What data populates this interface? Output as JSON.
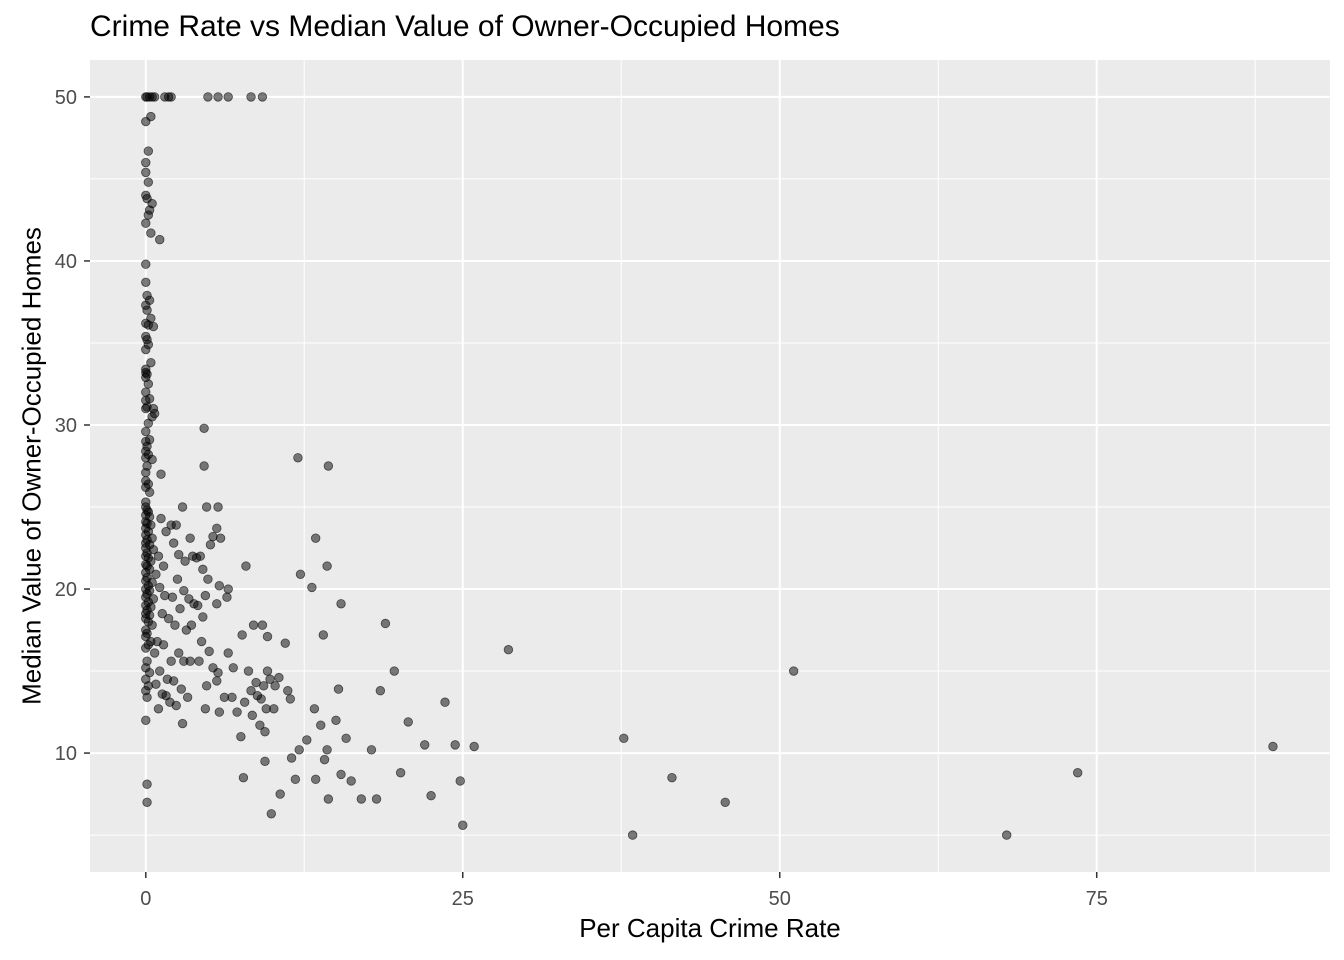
{
  "chart_data": {
    "type": "scatter",
    "title": "Crime Rate vs Median Value of Owner-Occupied Homes",
    "xlabel": "Per Capita Crime Rate",
    "ylabel": "Median Value of Owner-Occupied Homes",
    "xlim": [
      -4.4,
      93.4
    ],
    "ylim": [
      2.75,
      52.25
    ],
    "x_ticks": [
      0,
      25,
      50,
      75
    ],
    "y_ticks": [
      10,
      20,
      30,
      40,
      50
    ],
    "x_tick_labels": [
      "0",
      "25",
      "50",
      "75"
    ],
    "y_tick_labels": [
      "10",
      "20",
      "30",
      "40",
      "50"
    ],
    "grid": true,
    "panel_background": "#ebebeb",
    "grid_color": "#ffffff",
    "point_color": "#000000",
    "point_opacity": 0.5,
    "points": [
      [
        0.0,
        50.0
      ],
      [
        0.1,
        50.0
      ],
      [
        0.3,
        50.0
      ],
      [
        0.5,
        50.0
      ],
      [
        0.7,
        50.0
      ],
      [
        1.5,
        50.0
      ],
      [
        1.8,
        50.0
      ],
      [
        2.0,
        50.0
      ],
      [
        4.9,
        50.0
      ],
      [
        5.7,
        50.0
      ],
      [
        6.5,
        50.0
      ],
      [
        8.3,
        50.0
      ],
      [
        9.2,
        50.0
      ],
      [
        0.0,
        48.5
      ],
      [
        0.4,
        48.8
      ],
      [
        0.2,
        46.7
      ],
      [
        0.0,
        46.0
      ],
      [
        0.0,
        45.4
      ],
      [
        0.2,
        44.8
      ],
      [
        0.0,
        44.0
      ],
      [
        0.1,
        43.8
      ],
      [
        0.5,
        43.5
      ],
      [
        0.3,
        43.1
      ],
      [
        0.2,
        42.8
      ],
      [
        0.0,
        42.3
      ],
      [
        0.4,
        41.7
      ],
      [
        1.1,
        41.3
      ],
      [
        0.0,
        39.8
      ],
      [
        0.0,
        38.7
      ],
      [
        0.1,
        37.9
      ],
      [
        0.3,
        37.6
      ],
      [
        0.0,
        37.3
      ],
      [
        0.1,
        37.0
      ],
      [
        0.4,
        36.5
      ],
      [
        0.0,
        36.2
      ],
      [
        0.2,
        36.1
      ],
      [
        0.6,
        36.0
      ],
      [
        0.0,
        35.4
      ],
      [
        0.1,
        35.2
      ],
      [
        0.2,
        34.9
      ],
      [
        0.0,
        34.6
      ],
      [
        0.4,
        33.8
      ],
      [
        0.0,
        33.4
      ],
      [
        0.0,
        33.2
      ],
      [
        0.1,
        33.1
      ],
      [
        0.0,
        32.9
      ],
      [
        0.2,
        32.5
      ],
      [
        0.0,
        32.0
      ],
      [
        0.3,
        31.6
      ],
      [
        0.0,
        31.5
      ],
      [
        0.1,
        31.1
      ],
      [
        0.0,
        31.0
      ],
      [
        0.6,
        31.0
      ],
      [
        0.7,
        30.7
      ],
      [
        0.5,
        30.5
      ],
      [
        0.2,
        30.1
      ],
      [
        0.0,
        29.6
      ],
      [
        0.3,
        29.1
      ],
      [
        0.0,
        29.0
      ],
      [
        0.1,
        28.7
      ],
      [
        0.0,
        28.4
      ],
      [
        0.2,
        28.2
      ],
      [
        0.0,
        28.0
      ],
      [
        0.5,
        27.9
      ],
      [
        0.1,
        27.5
      ],
      [
        0.0,
        27.1
      ],
      [
        1.2,
        27.0
      ],
      [
        0.0,
        26.6
      ],
      [
        0.2,
        26.4
      ],
      [
        0.0,
        26.2
      ],
      [
        0.3,
        25.9
      ],
      [
        0.0,
        25.3
      ],
      [
        0.0,
        25.0
      ],
      [
        0.1,
        24.8
      ],
      [
        0.2,
        24.7
      ],
      [
        0.0,
        24.5
      ],
      [
        0.3,
        24.4
      ],
      [
        0.0,
        24.1
      ],
      [
        0.1,
        24.0
      ],
      [
        0.4,
        23.9
      ],
      [
        0.0,
        23.7
      ],
      [
        0.2,
        23.5
      ],
      [
        0.0,
        23.3
      ],
      [
        0.5,
        23.1
      ],
      [
        0.1,
        23.0
      ],
      [
        0.0,
        22.8
      ],
      [
        0.3,
        22.7
      ],
      [
        0.0,
        22.5
      ],
      [
        0.6,
        22.4
      ],
      [
        0.1,
        22.2
      ],
      [
        0.0,
        22.0
      ],
      [
        0.2,
        21.9
      ],
      [
        0.4,
        21.7
      ],
      [
        0.0,
        21.5
      ],
      [
        0.1,
        21.4
      ],
      [
        0.3,
        21.2
      ],
      [
        0.0,
        21.0
      ],
      [
        0.8,
        20.9
      ],
      [
        0.1,
        20.7
      ],
      [
        0.0,
        20.5
      ],
      [
        0.5,
        20.4
      ],
      [
        0.2,
        20.2
      ],
      [
        0.0,
        20.0
      ],
      [
        0.3,
        19.9
      ],
      [
        0.1,
        19.7
      ],
      [
        0.0,
        19.5
      ],
      [
        0.6,
        19.4
      ],
      [
        0.2,
        19.2
      ],
      [
        0.0,
        19.0
      ],
      [
        0.4,
        18.9
      ],
      [
        0.1,
        18.7
      ],
      [
        0.0,
        18.5
      ],
      [
        0.3,
        18.4
      ],
      [
        0.0,
        18.2
      ],
      [
        0.2,
        18.0
      ],
      [
        0.5,
        17.8
      ],
      [
        0.0,
        17.5
      ],
      [
        0.1,
        17.3
      ],
      [
        0.0,
        17.1
      ],
      [
        0.4,
        16.8
      ],
      [
        0.2,
        16.6
      ],
      [
        0.0,
        16.4
      ],
      [
        0.7,
        16.1
      ],
      [
        0.1,
        15.6
      ],
      [
        0.0,
        15.2
      ],
      [
        0.3,
        14.9
      ],
      [
        0.0,
        14.5
      ],
      [
        0.2,
        14.1
      ],
      [
        0.0,
        13.8
      ],
      [
        0.1,
        13.4
      ],
      [
        0.0,
        12.0
      ],
      [
        0.1,
        8.1
      ],
      [
        0.1,
        7.0
      ],
      [
        1.2,
        24.3
      ],
      [
        1.6,
        23.5
      ],
      [
        2.0,
        23.9
      ],
      [
        2.4,
        23.9
      ],
      [
        2.9,
        25.0
      ],
      [
        1.0,
        22.0
      ],
      [
        1.4,
        21.4
      ],
      [
        2.2,
        22.8
      ],
      [
        2.6,
        22.1
      ],
      [
        3.1,
        21.7
      ],
      [
        3.5,
        23.1
      ],
      [
        3.7,
        22.0
      ],
      [
        4.0,
        21.9
      ],
      [
        4.3,
        22.0
      ],
      [
        1.1,
        20.1
      ],
      [
        1.5,
        19.6
      ],
      [
        2.1,
        19.5
      ],
      [
        2.5,
        20.6
      ],
      [
        3.0,
        19.9
      ],
      [
        3.4,
        19.4
      ],
      [
        3.8,
        19.1
      ],
      [
        1.3,
        18.5
      ],
      [
        1.8,
        18.2
      ],
      [
        2.3,
        17.8
      ],
      [
        2.7,
        18.8
      ],
      [
        3.2,
        17.5
      ],
      [
        3.6,
        17.8
      ],
      [
        4.1,
        19.0
      ],
      [
        4.5,
        18.3
      ],
      [
        0.9,
        16.8
      ],
      [
        1.4,
        16.6
      ],
      [
        2.0,
        15.6
      ],
      [
        2.6,
        16.1
      ],
      [
        3.0,
        15.6
      ],
      [
        3.5,
        15.6
      ],
      [
        4.2,
        15.6
      ],
      [
        1.1,
        15.0
      ],
      [
        1.7,
        14.5
      ],
      [
        2.2,
        14.4
      ],
      [
        2.8,
        13.9
      ],
      [
        3.3,
        13.4
      ],
      [
        0.8,
        14.2
      ],
      [
        1.3,
        13.6
      ],
      [
        1.9,
        13.1
      ],
      [
        2.4,
        12.9
      ],
      [
        2.9,
        11.8
      ],
      [
        1.0,
        12.7
      ],
      [
        1.6,
        13.5
      ],
      [
        4.6,
        29.8
      ],
      [
        4.6,
        27.5
      ],
      [
        4.8,
        25.0
      ],
      [
        5.7,
        25.0
      ],
      [
        5.6,
        23.7
      ],
      [
        5.3,
        23.2
      ],
      [
        5.1,
        22.7
      ],
      [
        5.9,
        23.1
      ],
      [
        4.5,
        21.2
      ],
      [
        4.9,
        20.6
      ],
      [
        5.8,
        20.2
      ],
      [
        6.5,
        20.0
      ],
      [
        4.7,
        19.6
      ],
      [
        5.6,
        19.1
      ],
      [
        6.4,
        19.5
      ],
      [
        4.4,
        16.8
      ],
      [
        5.0,
        16.2
      ],
      [
        5.3,
        15.2
      ],
      [
        5.7,
        14.9
      ],
      [
        6.5,
        16.1
      ],
      [
        6.9,
        15.2
      ],
      [
        4.8,
        14.1
      ],
      [
        5.6,
        14.4
      ],
      [
        6.2,
        13.4
      ],
      [
        6.8,
        13.4
      ],
      [
        4.7,
        12.7
      ],
      [
        5.8,
        12.5
      ],
      [
        7.2,
        12.5
      ],
      [
        7.5,
        11.0
      ],
      [
        7.8,
        13.1
      ],
      [
        7.9,
        21.4
      ],
      [
        7.6,
        17.2
      ],
      [
        8.1,
        15.0
      ],
      [
        8.5,
        17.8
      ],
      [
        8.3,
        13.8
      ],
      [
        8.7,
        14.3
      ],
      [
        9.1,
        13.3
      ],
      [
        9.2,
        17.8
      ],
      [
        9.6,
        17.1
      ],
      [
        8.4,
        12.3
      ],
      [
        9.0,
        11.7
      ],
      [
        9.5,
        12.7
      ],
      [
        8.8,
        13.5
      ],
      [
        9.3,
        14.1
      ],
      [
        9.8,
        14.5
      ],
      [
        10.1,
        12.7
      ],
      [
        9.4,
        11.3
      ],
      [
        9.6,
        15.0
      ],
      [
        10.2,
        14.1
      ],
      [
        10.5,
        14.6
      ],
      [
        11.0,
        16.7
      ],
      [
        11.2,
        13.8
      ],
      [
        11.4,
        13.3
      ],
      [
        9.4,
        9.5
      ],
      [
        7.7,
        8.5
      ],
      [
        10.6,
        7.5
      ],
      [
        9.9,
        6.3
      ],
      [
        11.5,
        9.7
      ],
      [
        12.1,
        10.2
      ],
      [
        11.8,
        8.4
      ],
      [
        12.7,
        10.8
      ],
      [
        13.4,
        8.4
      ],
      [
        14.1,
        9.6
      ],
      [
        14.3,
        10.2
      ],
      [
        14.4,
        7.2
      ],
      [
        12.0,
        28.0
      ],
      [
        14.4,
        27.5
      ],
      [
        13.4,
        23.1
      ],
      [
        14.3,
        21.4
      ],
      [
        12.2,
        20.9
      ],
      [
        13.1,
        20.1
      ],
      [
        15.4,
        19.1
      ],
      [
        14.0,
        17.2
      ],
      [
        13.3,
        12.7
      ],
      [
        13.8,
        11.7
      ],
      [
        15.0,
        12.0
      ],
      [
        15.2,
        13.9
      ],
      [
        15.8,
        10.9
      ],
      [
        15.4,
        8.7
      ],
      [
        16.2,
        8.3
      ],
      [
        17.0,
        7.2
      ],
      [
        17.8,
        10.2
      ],
      [
        18.2,
        7.2
      ],
      [
        18.5,
        13.8
      ],
      [
        18.9,
        17.9
      ],
      [
        19.6,
        15.0
      ],
      [
        20.1,
        8.8
      ],
      [
        20.7,
        11.9
      ],
      [
        22.0,
        10.5
      ],
      [
        22.5,
        7.4
      ],
      [
        23.6,
        13.1
      ],
      [
        24.4,
        10.5
      ],
      [
        24.8,
        8.3
      ],
      [
        25.0,
        5.6
      ],
      [
        25.9,
        10.4
      ],
      [
        28.6,
        16.3
      ],
      [
        37.7,
        10.9
      ],
      [
        38.4,
        5.0
      ],
      [
        41.5,
        8.5
      ],
      [
        45.7,
        7.0
      ],
      [
        51.1,
        15.0
      ],
      [
        67.9,
        5.0
      ],
      [
        73.5,
        8.8
      ],
      [
        88.9,
        10.4
      ]
    ]
  }
}
